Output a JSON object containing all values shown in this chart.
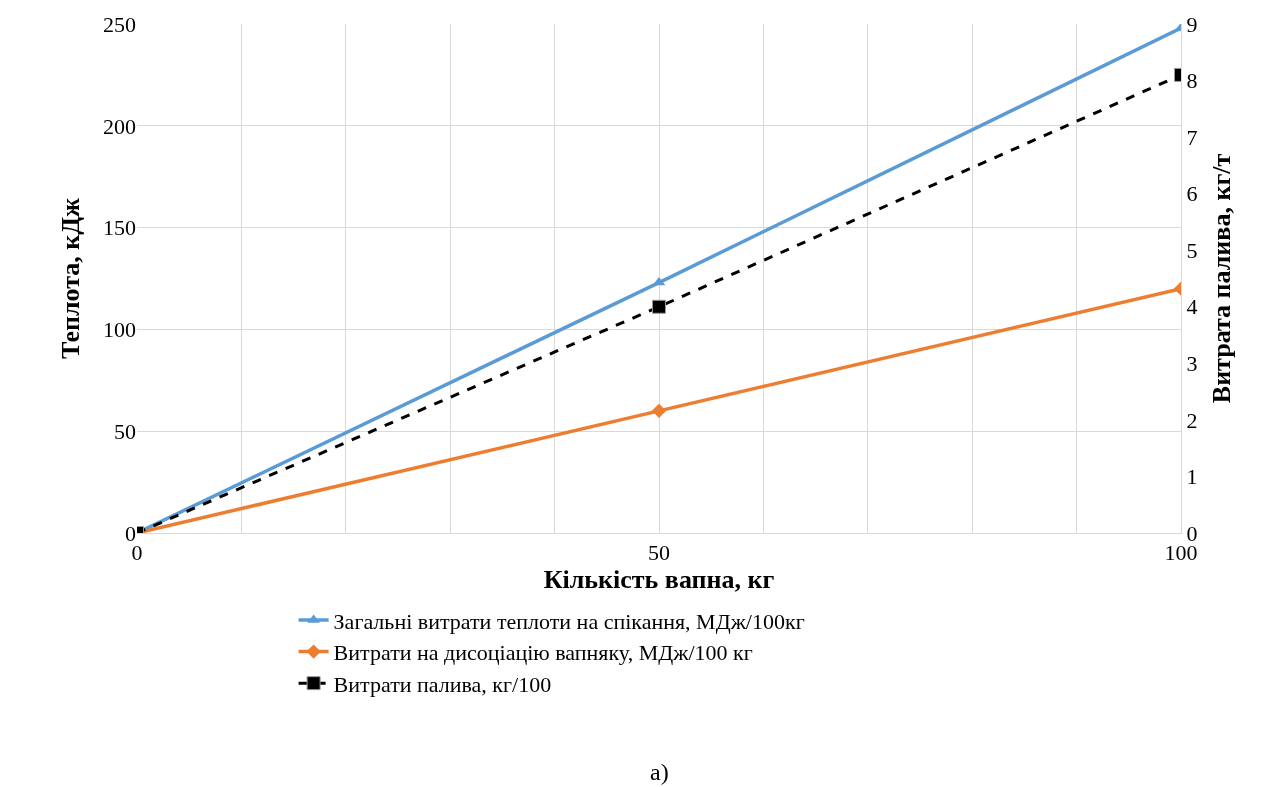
{
  "chart_data": {
    "type": "line",
    "xlabel": "Кількість вапна, кг",
    "ylabel": "Теплота, кДж",
    "y2label": "Витрата палива, кг/т",
    "x": [
      0,
      50,
      100
    ],
    "series": [
      {
        "name": "Загальні витрати теплоти на спікання, МДж/100кг",
        "color": "#5b9bd5",
        "values": [
          0,
          123,
          248
        ],
        "marker": "triangle",
        "line_style": "solid"
      },
      {
        "name": "Витрати на дисоціацію вапняку, МДж/100 кг",
        "color": "#ed7d31",
        "values": [
          0,
          60,
          120
        ],
        "marker": "diamond",
        "line_style": "solid"
      },
      {
        "name": "Витрати палива, кг/100",
        "color": "#000000",
        "values": [
          0,
          4.0,
          8.1
        ],
        "marker": "square",
        "line_style": "dashed",
        "axis": "y2"
      }
    ],
    "xlim": [
      0,
      100
    ],
    "xticks": [
      0,
      {
        "value": 10,
        "label": null
      },
      {
        "value": 20,
        "label": null
      },
      {
        "value": 30,
        "label": null
      },
      {
        "value": 40,
        "label": null
      },
      50,
      {
        "value": 60,
        "label": null
      },
      {
        "value": 70,
        "label": null
      },
      {
        "value": 80,
        "label": null
      },
      {
        "value": 90,
        "label": null
      },
      100
    ],
    "ylim": [
      0,
      250
    ],
    "yticks": [
      0,
      50,
      100,
      150,
      200,
      250
    ],
    "y2lim": [
      0,
      9
    ],
    "y2ticks": [
      0,
      1,
      2,
      3,
      4,
      5,
      6,
      7,
      8,
      9
    ],
    "grid": true,
    "legend": "bottom",
    "annotations": [
      "а)"
    ]
  }
}
